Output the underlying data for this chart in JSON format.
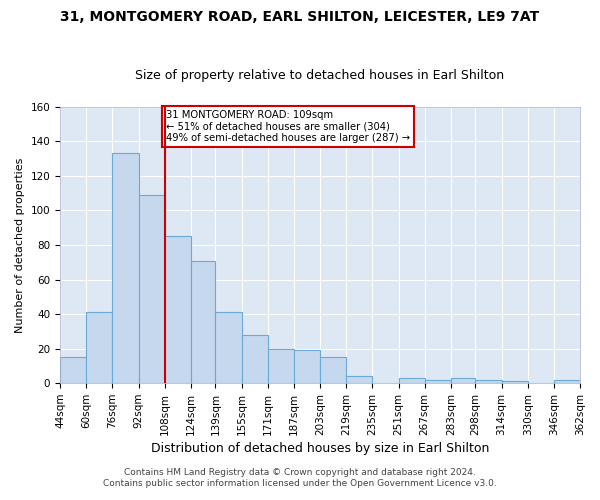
{
  "title_line1": "31, MONTGOMERY ROAD, EARL SHILTON, LEICESTER, LE9 7AT",
  "title_line2": "Size of property relative to detached houses in Earl Shilton",
  "xlabel": "Distribution of detached houses by size in Earl Shilton",
  "ylabel": "Number of detached properties",
  "bin_labels": [
    "44sqm",
    "60sqm",
    "76sqm",
    "92sqm",
    "108sqm",
    "124sqm",
    "139sqm",
    "155sqm",
    "171sqm",
    "187sqm",
    "203sqm",
    "219sqm",
    "235sqm",
    "251sqm",
    "267sqm",
    "283sqm",
    "298sqm",
    "314sqm",
    "330sqm",
    "346sqm",
    "362sqm"
  ],
  "bar_heights": [
    15,
    41,
    133,
    109,
    85,
    71,
    41,
    28,
    20,
    19,
    15,
    4,
    0,
    3,
    2,
    3,
    2,
    1,
    0,
    2
  ],
  "bar_color": "#c5d8ee",
  "bar_edge_color": "#6aaad4",
  "vline_x_idx": 4,
  "vline_color": "#cc0000",
  "ylim": [
    0,
    160
  ],
  "yticks": [
    0,
    20,
    40,
    60,
    80,
    100,
    120,
    140,
    160
  ],
  "annotation_line1": "31 MONTGOMERY ROAD: 109sqm",
  "annotation_line2": "← 51% of detached houses are smaller (304)",
  "annotation_line3": "49% of semi-detached houses are larger (287) →",
  "annotation_box_facecolor": "#ffffff",
  "annotation_box_edgecolor": "#cc0000",
  "footer_line1": "Contains HM Land Registry data © Crown copyright and database right 2024.",
  "footer_line2": "Contains public sector information licensed under the Open Government Licence v3.0.",
  "fig_facecolor": "#ffffff",
  "plot_facecolor": "#dde8f4",
  "grid_color": "#ffffff",
  "title1_fontsize": 10,
  "title2_fontsize": 9,
  "xlabel_fontsize": 9,
  "ylabel_fontsize": 8,
  "tick_fontsize": 7.5,
  "footer_fontsize": 6.5,
  "bin_edges": [
    44,
    60,
    76,
    92,
    108,
    124,
    139,
    155,
    171,
    187,
    203,
    219,
    235,
    251,
    267,
    283,
    298,
    314,
    330,
    346,
    362
  ]
}
